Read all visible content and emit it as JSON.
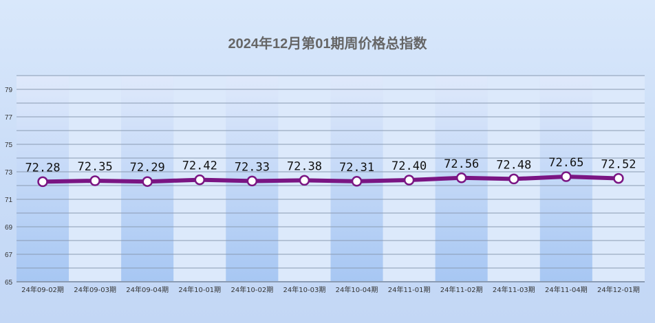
{
  "chart_data": {
    "type": "line",
    "title": "2024年12月第01期周价格总指数",
    "xlabel": "",
    "ylabel": "",
    "categories": [
      "24年09-02期",
      "24年09-03期",
      "24年09-04期",
      "24年10-01期",
      "24年10-02期",
      "24年10-03期",
      "24年10-04期",
      "24年11-01期",
      "24年11-02期",
      "24年11-03期",
      "24年11-04期",
      "24年12-01期"
    ],
    "series": [
      {
        "values": [
          72.28,
          72.35,
          72.29,
          72.42,
          72.33,
          72.38,
          72.31,
          72.4,
          72.56,
          72.48,
          72.65,
          72.52
        ]
      }
    ],
    "data_labels": [
      "72.28",
      "72.35",
      "72.29",
      "72.42",
      "72.33",
      "72.38",
      "72.31",
      "72.40",
      "72.56",
      "72.48",
      "72.65",
      "72.52"
    ],
    "ylim": [
      65,
      80
    ],
    "yticks": [
      65,
      67,
      69,
      71,
      73,
      75,
      77,
      79
    ],
    "grid": true,
    "legend": "none",
    "colors": {
      "line": "#7a1583",
      "marker_fill": "#ffffff",
      "title": "#666666",
      "band_dark_top": "#dfe9fb",
      "band_dark_bottom": "#a7c7f3",
      "band_light": "#dce9fb",
      "grid": "#8a9bb2"
    }
  }
}
